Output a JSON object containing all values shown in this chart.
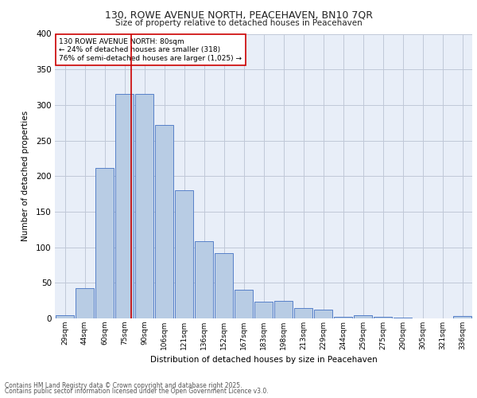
{
  "title_line1": "130, ROWE AVENUE NORTH, PEACEHAVEN, BN10 7QR",
  "title_line2": "Size of property relative to detached houses in Peacehaven",
  "xlabel": "Distribution of detached houses by size in Peacehaven",
  "ylabel": "Number of detached properties",
  "categories": [
    "29sqm",
    "44sqm",
    "60sqm",
    "75sqm",
    "90sqm",
    "106sqm",
    "121sqm",
    "136sqm",
    "152sqm",
    "167sqm",
    "183sqm",
    "198sqm",
    "213sqm",
    "229sqm",
    "244sqm",
    "259sqm",
    "275sqm",
    "290sqm",
    "305sqm",
    "321sqm",
    "336sqm"
  ],
  "values": [
    4,
    43,
    212,
    315,
    315,
    272,
    180,
    108,
    92,
    40,
    23,
    25,
    15,
    12,
    2,
    5,
    2,
    1,
    0,
    0,
    3
  ],
  "bar_color": "#b8cce4",
  "bar_edge_color": "#4472c4",
  "vline_color": "#cc0000",
  "annotation_text": "130 ROWE AVENUE NORTH: 80sqm\n← 24% of detached houses are smaller (318)\n76% of semi-detached houses are larger (1,025) →",
  "annotation_box_color": "#cc0000",
  "ylim": [
    0,
    400
  ],
  "yticks": [
    0,
    50,
    100,
    150,
    200,
    250,
    300,
    350,
    400
  ],
  "grid_color": "#c0c8d8",
  "background_color": "#e8eef8",
  "footer_line1": "Contains HM Land Registry data © Crown copyright and database right 2025.",
  "footer_line2": "Contains public sector information licensed under the Open Government Licence v3.0."
}
